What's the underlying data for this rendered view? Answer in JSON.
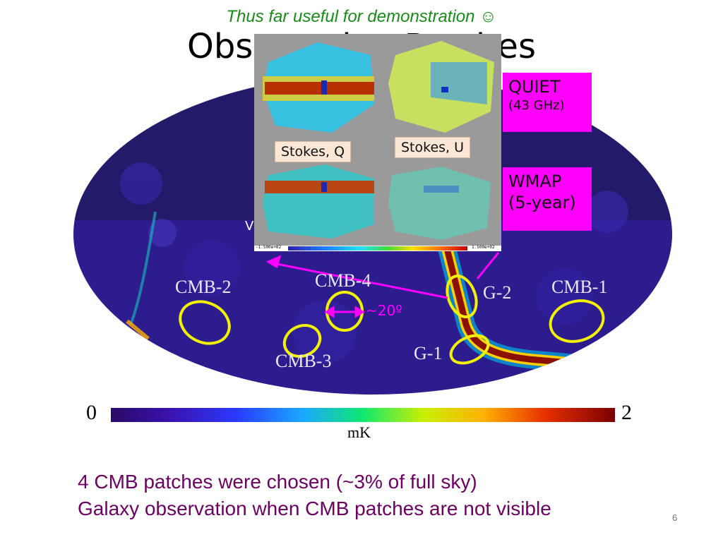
{
  "subtitle": "Thus far useful for demonstration ☺",
  "title": "Observation Patches",
  "patches": {
    "cmb1": "CMB-1",
    "cmb2": "CMB-2",
    "cmb3": "CMB-3",
    "cmb4": "CMB-4",
    "g1": "G-1",
    "g2": "G-2"
  },
  "size_annotation": "~20º",
  "inset": {
    "stokes_q": "Stokes, Q",
    "stokes_u": "Stokes, U",
    "scale_min": "-1.500e+02",
    "scale_max": "1.500e+02"
  },
  "quiet_label": "QUIET",
  "quiet_freq": "(43 GHz)",
  "wmap_label": "WMAP",
  "wmap_years": "(5-year)",
  "partial_label": "V",
  "colorbar": {
    "min": "0",
    "max": "2",
    "unit": "mK"
  },
  "bottom_lines": [
    "4 CMB patches were chosen (~3% of full sky)",
    "Galaxy observation when CMB patches are not visible"
  ],
  "page_number": "6",
  "colors": {
    "subtitle": "#1a8a1a",
    "bottom_text": "#6a0060",
    "magenta": "#ff00ff",
    "ellipse": "#f2f200",
    "map_bg": "#2c1a8a"
  }
}
